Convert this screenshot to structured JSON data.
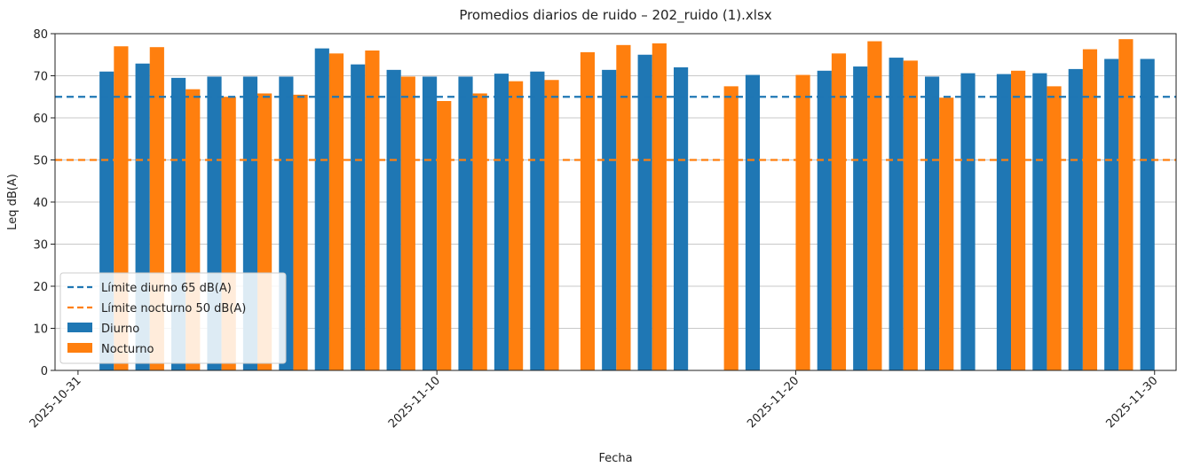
{
  "chart_data": {
    "type": "bar",
    "title": "Promedios diarios de ruido – 202_ruido (1).xlsx",
    "x_label": "Fecha",
    "y_label": "Leq dB(A)",
    "x": [
      "2025-11-01",
      "2025-11-02",
      "2025-11-03",
      "2025-11-04",
      "2025-11-05",
      "2025-11-06",
      "2025-11-07",
      "2025-11-08",
      "2025-11-09",
      "2025-11-10",
      "2025-11-11",
      "2025-11-12",
      "2025-11-13",
      "2025-11-14",
      "2025-11-15",
      "2025-11-16",
      "2025-11-17",
      "2025-11-18",
      "2025-11-19",
      "2025-11-20",
      "2025-11-21",
      "2025-11-22",
      "2025-11-23",
      "2025-11-24",
      "2025-11-25",
      "2025-11-26",
      "2025-11-27",
      "2025-11-28",
      "2025-11-29",
      "2025-11-30"
    ],
    "series": [
      {
        "name": "Diurno",
        "color": "#1f77b4",
        "values": [
          71,
          72.9,
          69.5,
          69.8,
          69.8,
          69.8,
          76.5,
          72.7,
          71.4,
          69.8,
          69.8,
          70.5,
          71,
          null,
          71.4,
          75,
          72,
          null,
          70.2,
          null,
          71.2,
          72.2,
          74.3,
          69.8,
          70.6,
          70.4,
          70.6,
          71.6,
          74,
          74
        ]
      },
      {
        "name": "Nocturno",
        "color": "#ff7f0e",
        "values": [
          77,
          76.8,
          66.8,
          65,
          65.8,
          65.5,
          75.3,
          76,
          69.8,
          64,
          65.8,
          68.7,
          69,
          75.6,
          77.3,
          77.7,
          null,
          67.5,
          null,
          70.2,
          75.3,
          78.2,
          73.6,
          64.8,
          null,
          71.2,
          67.5,
          76.3,
          78.7,
          null
        ]
      }
    ],
    "reference_lines": [
      {
        "name": "Límite diurno 65 dB(A)",
        "value": 65,
        "color": "#1f77b4"
      },
      {
        "name": "Límite nocturno 50 dB(A)",
        "value": 50,
        "color": "#ff7f0e"
      }
    ],
    "xlim": [
      "2025-10-30T08:38",
      "2025-11-30T14:24"
    ],
    "xticks": [
      "2025-10-31",
      "2025-11-10",
      "2025-11-20",
      "2025-11-30"
    ],
    "ylim": [
      0,
      80
    ],
    "yticks": [
      0,
      10,
      20,
      30,
      40,
      50,
      60,
      70,
      80
    ],
    "grid": "y",
    "legend": "lower left"
  }
}
